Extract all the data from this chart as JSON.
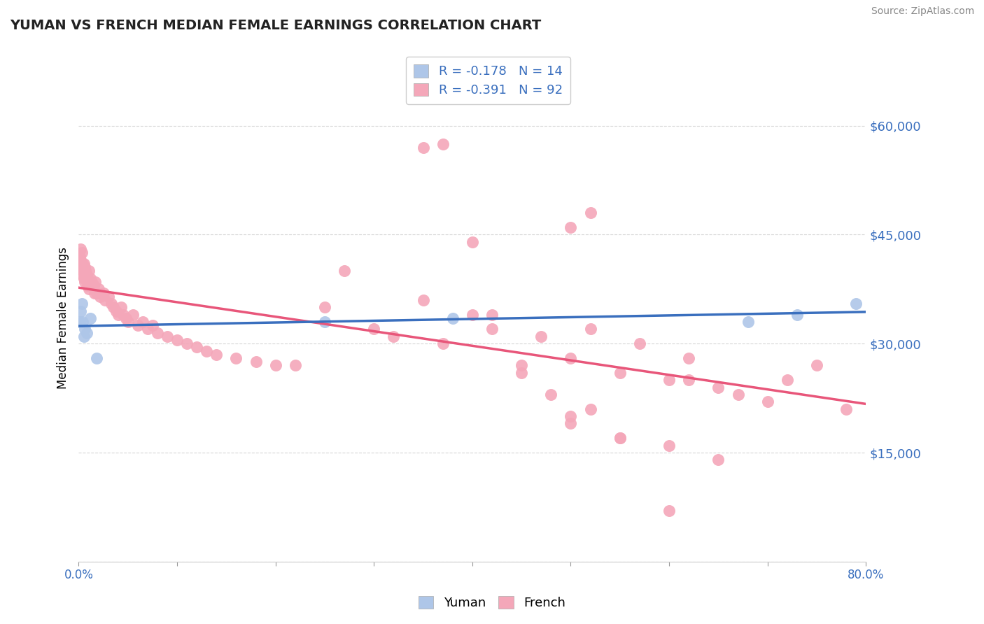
{
  "title": "YUMAN VS FRENCH MEDIAN FEMALE EARNINGS CORRELATION CHART",
  "source_text": "Source: ZipAtlas.com",
  "ylabel": "Median Female Earnings",
  "xlim": [
    0.0,
    0.8
  ],
  "ylim": [
    0,
    67000
  ],
  "yticks": [
    0,
    15000,
    30000,
    45000,
    60000
  ],
  "ytick_labels": [
    "",
    "$15,000",
    "$30,000",
    "$45,000",
    "$60,000"
  ],
  "yuman_R": -0.178,
  "yuman_N": 14,
  "french_R": -0.391,
  "french_N": 92,
  "yuman_color": "#aec6e8",
  "french_color": "#f4a7b9",
  "yuman_line_color": "#3a6fbe",
  "french_line_color": "#e8567a",
  "background_color": "#ffffff",
  "grid_color": "#cccccc",
  "yuman_x": [
    0.001,
    0.002,
    0.003,
    0.004,
    0.005,
    0.006,
    0.008,
    0.012,
    0.018,
    0.25,
    0.38,
    0.68,
    0.73,
    0.79
  ],
  "yuman_y": [
    33000,
    34500,
    35500,
    33000,
    31000,
    32000,
    31500,
    33500,
    28000,
    33000,
    33500,
    33000,
    34000,
    35500
  ],
  "french_x": [
    0.001,
    0.002,
    0.002,
    0.003,
    0.003,
    0.004,
    0.004,
    0.004,
    0.005,
    0.005,
    0.006,
    0.006,
    0.007,
    0.007,
    0.008,
    0.009,
    0.01,
    0.01,
    0.012,
    0.013,
    0.015,
    0.016,
    0.017,
    0.018,
    0.02,
    0.022,
    0.025,
    0.027,
    0.03,
    0.033,
    0.035,
    0.038,
    0.04,
    0.043,
    0.045,
    0.048,
    0.05,
    0.055,
    0.06,
    0.065,
    0.07,
    0.075,
    0.08,
    0.09,
    0.1,
    0.11,
    0.12,
    0.13,
    0.14,
    0.16,
    0.18,
    0.2,
    0.22,
    0.25,
    0.27,
    0.3,
    0.32,
    0.35,
    0.37,
    0.4,
    0.42,
    0.45,
    0.47,
    0.5,
    0.52,
    0.55,
    0.57,
    0.6,
    0.62,
    0.65,
    0.67,
    0.7,
    0.72,
    0.75,
    0.78,
    0.5,
    0.52,
    0.55,
    0.6,
    0.62,
    0.35,
    0.37,
    0.4,
    0.42,
    0.45,
    0.48,
    0.5,
    0.55,
    0.6,
    0.65,
    0.5,
    0.52
  ],
  "french_y": [
    42000,
    43000,
    41500,
    42500,
    40500,
    41000,
    40000,
    39500,
    41000,
    39000,
    40500,
    38500,
    40000,
    39000,
    39500,
    38000,
    40000,
    37500,
    39000,
    38500,
    38000,
    37000,
    38500,
    37000,
    37500,
    36500,
    37000,
    36000,
    36500,
    35500,
    35000,
    34500,
    34000,
    35000,
    34000,
    33500,
    33000,
    34000,
    32500,
    33000,
    32000,
    32500,
    31500,
    31000,
    30500,
    30000,
    29500,
    29000,
    28500,
    28000,
    27500,
    27000,
    27000,
    35000,
    40000,
    32000,
    31000,
    36000,
    30000,
    34000,
    32000,
    27000,
    31000,
    28000,
    32000,
    26000,
    30000,
    25000,
    28000,
    24000,
    23000,
    22000,
    25000,
    27000,
    21000,
    19000,
    21000,
    17000,
    7000,
    25000,
    57000,
    57500,
    44000,
    34000,
    26000,
    23000,
    20000,
    17000,
    16000,
    14000,
    46000,
    48000
  ]
}
